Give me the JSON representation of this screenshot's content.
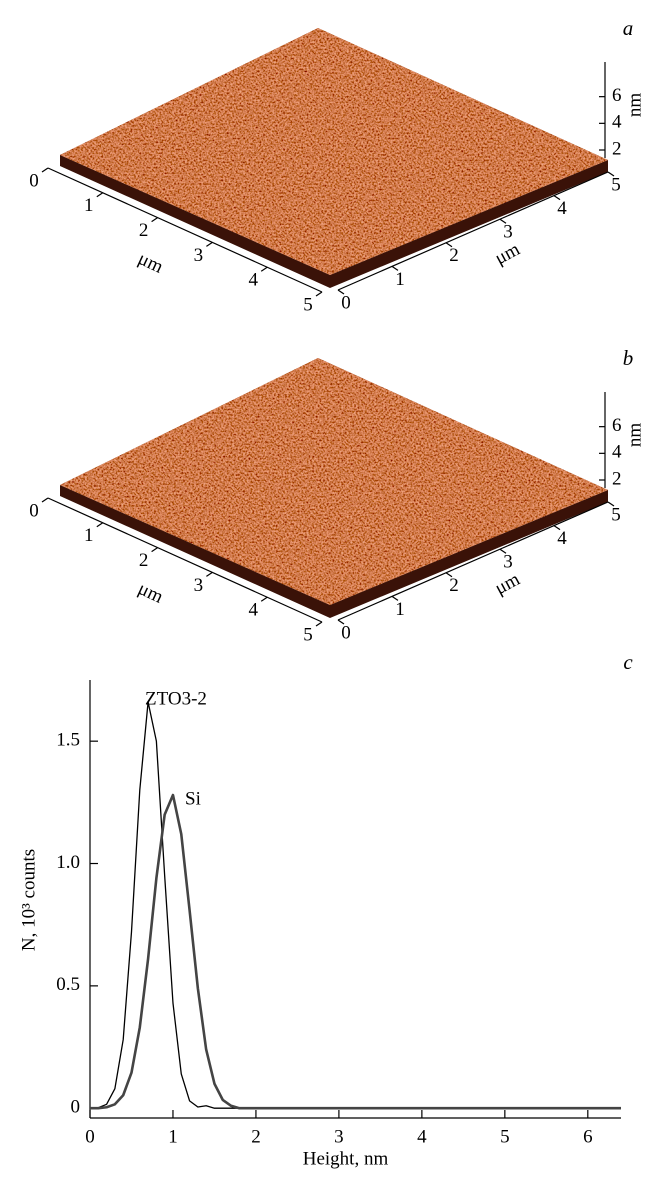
{
  "chart_data": [
    {
      "type": "surface",
      "panel_label": "a",
      "xlabel": "μm",
      "xlim": [
        0,
        5
      ],
      "xticks": [
        0,
        1,
        2,
        3,
        4,
        5
      ],
      "ylabel": "μm",
      "ylim": [
        0,
        5
      ],
      "yticks": [
        0,
        1,
        2,
        3,
        4,
        5
      ],
      "zlabel": "nm",
      "zlim": [
        1.4,
        8.6
      ],
      "zticks": [
        2,
        4,
        6
      ]
    },
    {
      "type": "surface",
      "panel_label": "b",
      "xlabel": "μm",
      "xlim": [
        0,
        5
      ],
      "xticks": [
        0,
        1,
        2,
        3,
        4,
        5
      ],
      "ylabel": "μm",
      "ylim": [
        0,
        5
      ],
      "yticks": [
        0,
        1,
        2,
        3,
        4,
        5
      ],
      "zlabel": "nm",
      "zlim": [
        1.4,
        8.6
      ],
      "zticks": [
        2,
        4,
        6
      ]
    },
    {
      "type": "line",
      "panel_label": "c",
      "xlabel": "Height, nm",
      "ylabel": "N, 10³ counts",
      "xlim": [
        0,
        6.4
      ],
      "xticks": [
        0,
        1,
        2,
        3,
        4,
        5,
        6
      ],
      "ylim": [
        -0.04,
        1.75
      ],
      "yticks": [
        0,
        0.5,
        {
          "value": 1,
          "label": "1.0"
        },
        1.5
      ],
      "x": [
        0,
        0.1,
        0.2,
        0.3,
        0.4,
        0.5,
        0.6,
        0.7,
        0.8,
        0.9,
        1.0,
        1.1,
        1.2,
        1.3,
        1.4,
        1.5,
        1.6,
        1.7,
        1.8,
        1.9,
        2.0,
        6.4
      ],
      "series": [
        {
          "name": "ZTO3-2",
          "color": "#000000",
          "values": [
            0,
            0.002,
            0.016,
            0.08,
            0.28,
            0.72,
            1.3,
            1.66,
            1.5,
            0.95,
            0.43,
            0.14,
            0.03,
            0.005,
            0.01,
            0,
            0,
            0,
            0,
            0,
            0,
            0
          ]
        },
        {
          "name": "Si",
          "color": "#444444",
          "values": [
            0,
            0,
            0.004,
            0.016,
            0.053,
            0.145,
            0.33,
            0.61,
            0.94,
            1.2,
            1.28,
            1.12,
            0.81,
            0.49,
            0.24,
            0.1,
            0.034,
            0.01,
            0,
            0,
            0,
            0
          ]
        }
      ]
    }
  ]
}
